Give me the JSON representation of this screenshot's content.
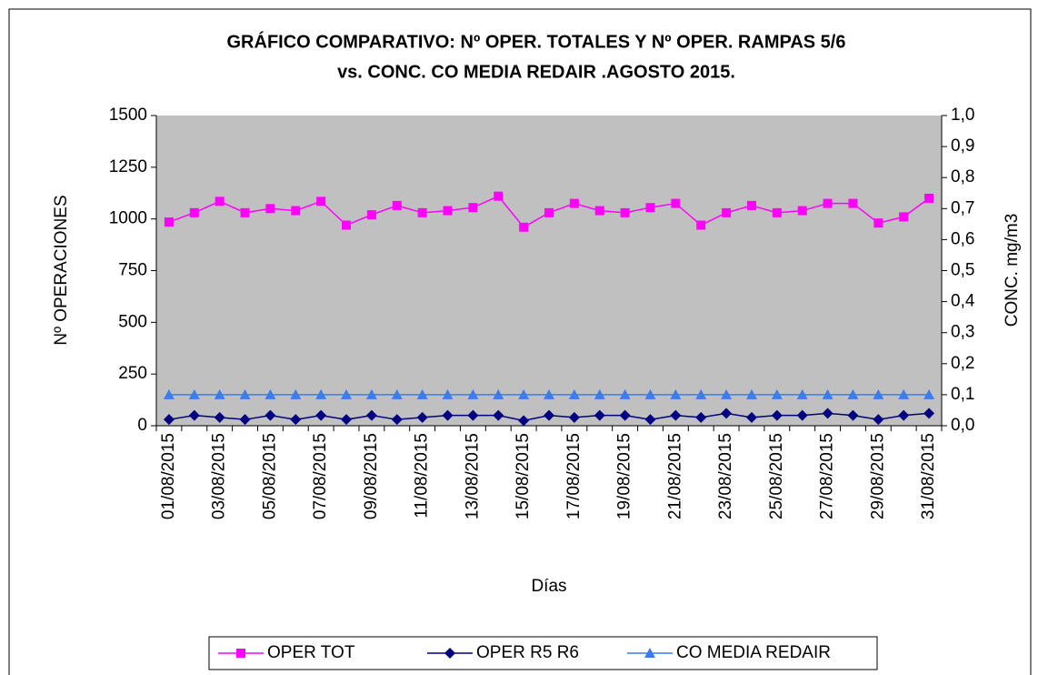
{
  "chart_data": {
    "type": "line",
    "title": [
      "GRÁFICO COMPARATIVO: Nº OPER. TOTALES Y Nº OPER. RAMPAS 5/6",
      "vs. CONC. CO MEDIA REDAIR .AGOSTO 2015."
    ],
    "x_label": "Días",
    "y_label": "Nº OPERACIONES",
    "y2_label": "CONC. mg/m3",
    "categories": [
      "01/08/2015",
      null,
      "03/08/2015",
      null,
      "05/08/2015",
      null,
      "07/08/2015",
      null,
      "09/08/2015",
      null,
      "11/08/2015",
      null,
      "13/08/2015",
      null,
      "15/08/2015",
      null,
      "17/08/2015",
      null,
      "19/08/2015",
      null,
      "21/08/2015",
      null,
      "23/08/2015",
      null,
      "25/08/2015",
      null,
      "27/08/2015",
      null,
      "29/08/2015",
      null,
      "31/08/2015"
    ],
    "ylim": [
      0,
      1500
    ],
    "yticks": [
      0,
      250,
      500,
      750,
      1000,
      1250,
      1500
    ],
    "y2lim": [
      0,
      1.0
    ],
    "y2ticks": [
      {
        "value": 0,
        "label": "0,0"
      },
      {
        "value": 0.1,
        "label": "0,1"
      },
      {
        "value": 0.2,
        "label": "0,2"
      },
      {
        "value": 0.3,
        "label": "0,3"
      },
      {
        "value": 0.4,
        "label": "0,4"
      },
      {
        "value": 0.5,
        "label": "0,5"
      },
      {
        "value": 0.6,
        "label": "0,6"
      },
      {
        "value": 0.7,
        "label": "0,7"
      },
      {
        "value": 0.8,
        "label": "0,8"
      },
      {
        "value": 0.9,
        "label": "0,9"
      },
      {
        "value": 1.0,
        "label": "1,0"
      }
    ],
    "legend": "bottom",
    "series": [
      {
        "name": "OPER TOT",
        "color": "#ff00ff",
        "marker": "square",
        "values": [
          985,
          1030,
          1085,
          1030,
          1050,
          1040,
          1085,
          970,
          1020,
          1065,
          1030,
          1040,
          1055,
          1110,
          960,
          1030,
          1075,
          1040,
          1030,
          1055,
          1075,
          970,
          1030,
          1065,
          1030,
          1040,
          1075,
          1075,
          980,
          1010,
          1100
        ]
      },
      {
        "name": "OPER R5 R6",
        "color": "#000080",
        "marker": "diamond",
        "values": [
          30,
          50,
          40,
          30,
          50,
          30,
          50,
          30,
          50,
          30,
          40,
          50,
          50,
          50,
          25,
          50,
          40,
          50,
          50,
          30,
          50,
          40,
          60,
          40,
          50,
          50,
          60,
          50,
          30,
          50,
          60
        ]
      },
      {
        "name": "CO MEDIA REDAIR",
        "color": "#3d7cf0",
        "marker": "triangle",
        "axis": "y2",
        "values": [
          0.1,
          0.1,
          0.1,
          0.1,
          0.1,
          0.1,
          0.1,
          0.1,
          0.1,
          0.1,
          0.1,
          0.1,
          0.1,
          0.1,
          0.1,
          0.1,
          0.1,
          0.1,
          0.1,
          0.1,
          0.1,
          0.1,
          0.1,
          0.1,
          0.1,
          0.1,
          0.1,
          0.1,
          0.1,
          0.1,
          0.1
        ]
      }
    ]
  }
}
